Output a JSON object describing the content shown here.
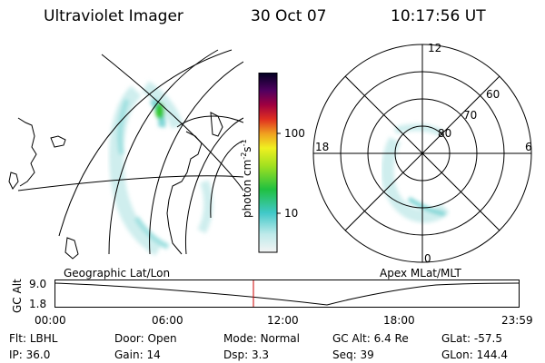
{
  "header": {
    "title": "Ultraviolet Imager",
    "date": "30 Oct 07",
    "time": "10:17:56 UT"
  },
  "colorbar": {
    "unit_label": "photon cm",
    "unit_exp1": "-2",
    "unit_s": "s",
    "unit_exp2": "-1",
    "ticks": [
      "100",
      "10"
    ]
  },
  "polar": {
    "mlt_labels": {
      "top": "12",
      "bottom": "0",
      "left": "18",
      "right": "6"
    },
    "lat_labels": [
      "60",
      "70",
      "80"
    ]
  },
  "maps": {
    "left_caption": "Geographic Lat/Lon",
    "right_caption": "Apex MLat/MLT"
  },
  "timeline": {
    "ylabel": "GC Alt",
    "ytick_top": "9.0",
    "ytick_bottom": "1.8",
    "xticks": [
      "00:00",
      "06:00",
      "12:00",
      "18:00",
      "23:59"
    ]
  },
  "footer": {
    "row1": [
      {
        "label": "Flt:",
        "value": "LBHL"
      },
      {
        "label": "Door:",
        "value": "Open"
      },
      {
        "label": "Mode:",
        "value": "Normal"
      },
      {
        "label": "GC Alt:",
        "value": "6.4 Re"
      },
      {
        "label": "GLat:",
        "value": "-57.5"
      }
    ],
    "row2": [
      {
        "label": "IP:",
        "value": "36.0"
      },
      {
        "label": "Gain:",
        "value": "14"
      },
      {
        "label": "Dsp:",
        "value": "3.3"
      },
      {
        "label": "Seq:",
        "value": "39"
      },
      {
        "label": "GLon:",
        "value": "144.4"
      }
    ]
  },
  "colors": {
    "aurora_faint": "#cfeeee",
    "aurora_mid": "#7fd6d6",
    "aurora_bright": "#32c832",
    "current_time_marker": "#cc0000"
  }
}
